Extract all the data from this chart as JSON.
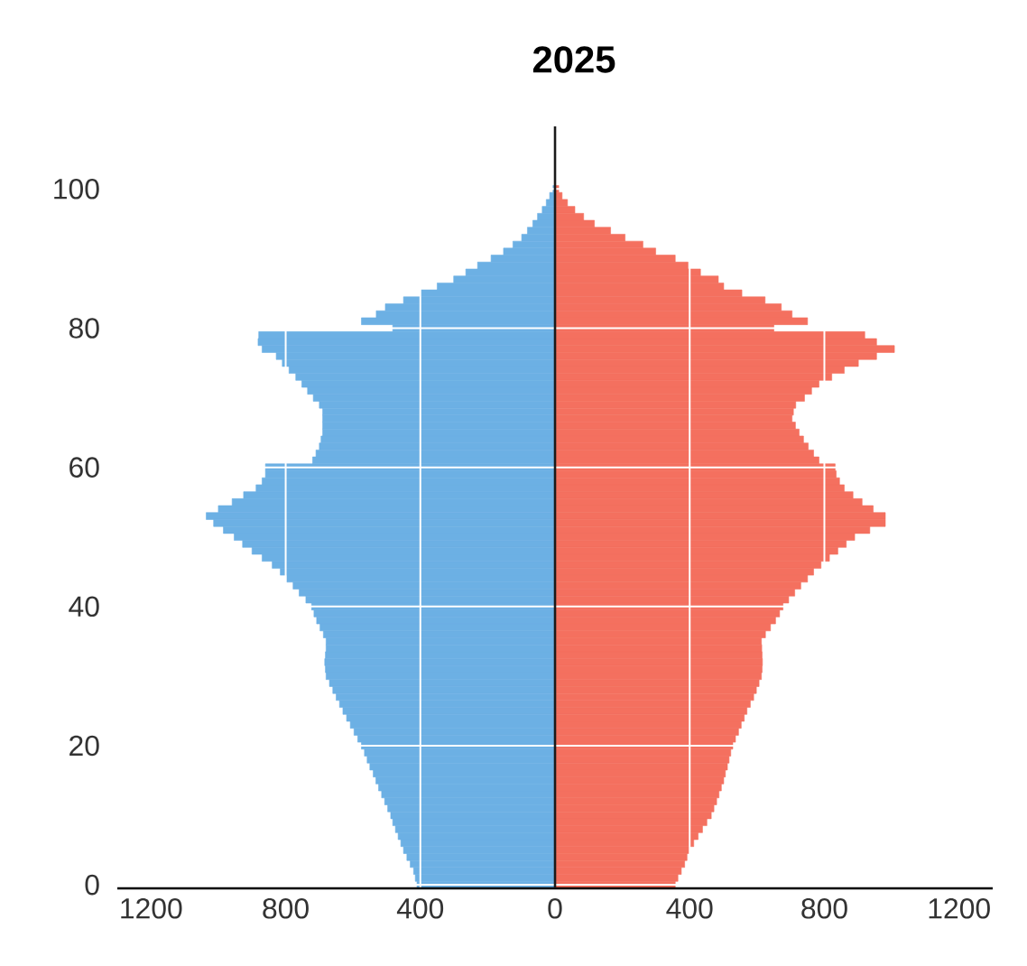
{
  "chart_data": {
    "type": "bar",
    "orientation": "horizontal",
    "title": "2025",
    "categories": [
      "100",
      null,
      null,
      null,
      null,
      null,
      null,
      null,
      null,
      null,
      null,
      null,
      null,
      null,
      null,
      null,
      null,
      null,
      null,
      null,
      "80",
      null,
      null,
      null,
      null,
      null,
      null,
      null,
      null,
      null,
      null,
      null,
      null,
      null,
      null,
      null,
      null,
      null,
      null,
      null,
      "60",
      null,
      null,
      null,
      null,
      null,
      null,
      null,
      null,
      null,
      null,
      null,
      null,
      null,
      null,
      null,
      null,
      null,
      null,
      null,
      "40",
      null,
      null,
      null,
      null,
      null,
      null,
      null,
      null,
      null,
      null,
      null,
      null,
      null,
      null,
      null,
      null,
      null,
      null,
      null,
      "20",
      null,
      null,
      null,
      null,
      null,
      null,
      null,
      null,
      null,
      null,
      null,
      null,
      null,
      null,
      null,
      null,
      null,
      null,
      null,
      "0"
    ],
    "series": [
      {
        "color": "#6cb0e4",
        "values": [
          -6,
          -16,
          -26,
          -38,
          -52,
          -66,
          -82,
          -99,
          -125,
          -153,
          -190,
          -230,
          -265,
          -301,
          -350,
          -400,
          -450,
          -504,
          -531,
          -575,
          -482,
          -880,
          -882,
          -870,
          -828,
          -810,
          -790,
          -770,
          -752,
          -735,
          -718,
          -700,
          -690,
          -690,
          -690,
          -690,
          -695,
          -700,
          -710,
          -720,
          -860,
          -860,
          -870,
          -888,
          -925,
          -959,
          -1000,
          -1036,
          -1014,
          -985,
          -953,
          -928,
          -900,
          -870,
          -840,
          -816,
          -797,
          -778,
          -760,
          -740,
          -723,
          -716,
          -708,
          -698,
          -688,
          -680,
          -680,
          -682,
          -684,
          -682,
          -680,
          -670,
          -660,
          -650,
          -640,
          -630,
          -619,
          -608,
          -597,
          -586,
          -575,
          -566,
          -558,
          -550,
          -540,
          -532,
          -524,
          -515,
          -506,
          -497,
          -488,
          -482,
          -474,
          -466,
          -458,
          -450,
          -440,
          -430,
          -420,
          -415,
          -410
        ]
      },
      {
        "color": "#f4705f",
        "values": [
          11,
          21,
          37,
          59,
          85,
          117,
          165,
          208,
          261,
          299,
          357,
          395,
          432,
          485,
          501,
          555,
          624,
          672,
          704,
          750,
          650,
          920,
          955,
          1008,
          955,
          901,
          859,
          822,
          784,
          762,
          741,
          715,
          708,
          704,
          714,
          725,
          738,
          752,
          768,
          784,
          832,
          835,
          845,
          859,
          885,
          912,
          945,
          981,
          981,
          935,
          890,
          865,
          840,
          815,
          790,
          768,
          750,
          730,
          712,
          694,
          677,
          667,
          655,
          640,
          625,
          613,
          614,
          615,
          616,
          615,
          613,
          606,
          598,
          590,
          580,
          570,
          562,
          553,
          545,
          536,
          528,
          522,
          517,
          512,
          506,
          501,
          494,
          487,
          480,
          472,
          464,
          451,
          438,
          425,
          412,
          400,
          392,
          385,
          375,
          365,
          357
        ]
      }
    ],
    "xlim": [
      -1300,
      1300
    ],
    "xticks": [
      {
        "value": -1200,
        "label": "1200"
      },
      {
        "value": -800,
        "label": "800"
      },
      {
        "value": -400,
        "label": "400"
      },
      0,
      400,
      800,
      1200
    ],
    "ref_lines": [
      {
        "axis": "x",
        "value": 0,
        "color": "#1a1a1a"
      }
    ],
    "grid": true,
    "stacked": true
  }
}
